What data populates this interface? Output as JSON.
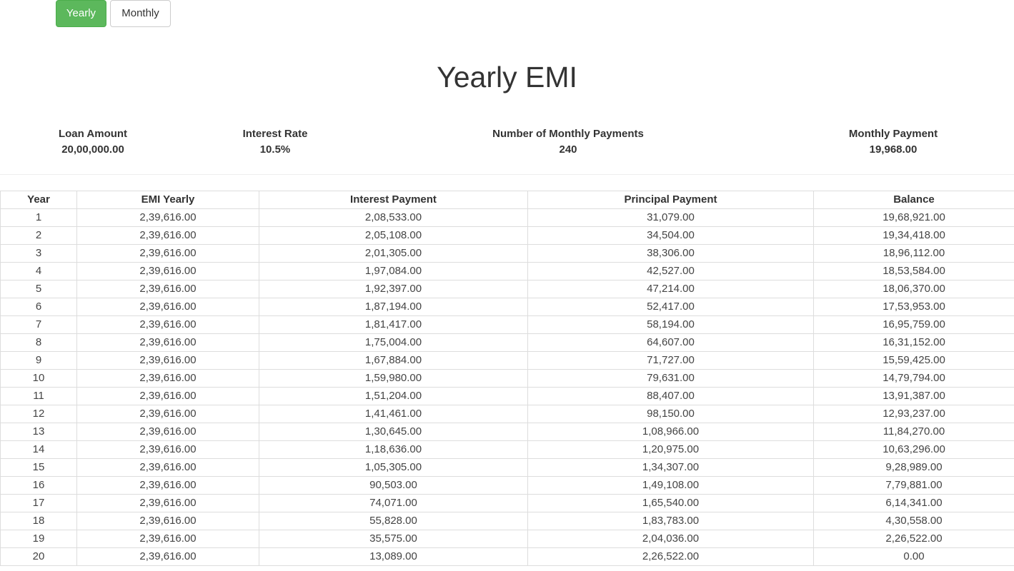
{
  "toggle": {
    "yearly_label": "Yearly",
    "monthly_label": "Monthly",
    "active": "Yearly",
    "active_color": "#5cb85c"
  },
  "title": "Yearly EMI",
  "summary": {
    "loan_amount_label": "Loan Amount",
    "loan_amount_value": "20,00,000.00",
    "interest_rate_label": "Interest Rate",
    "interest_rate_value": "10.5%",
    "num_payments_label": "Number of Monthly Payments",
    "num_payments_value": "240",
    "monthly_payment_label": "Monthly Payment",
    "monthly_payment_value": "19,968.00"
  },
  "table": {
    "headers": [
      "Year",
      "EMI Yearly",
      "Interest Payment",
      "Principal Payment",
      "Balance"
    ],
    "rows": [
      [
        "1",
        "2,39,616.00",
        "2,08,533.00",
        "31,079.00",
        "19,68,921.00"
      ],
      [
        "2",
        "2,39,616.00",
        "2,05,108.00",
        "34,504.00",
        "19,34,418.00"
      ],
      [
        "3",
        "2,39,616.00",
        "2,01,305.00",
        "38,306.00",
        "18,96,112.00"
      ],
      [
        "4",
        "2,39,616.00",
        "1,97,084.00",
        "42,527.00",
        "18,53,584.00"
      ],
      [
        "5",
        "2,39,616.00",
        "1,92,397.00",
        "47,214.00",
        "18,06,370.00"
      ],
      [
        "6",
        "2,39,616.00",
        "1,87,194.00",
        "52,417.00",
        "17,53,953.00"
      ],
      [
        "7",
        "2,39,616.00",
        "1,81,417.00",
        "58,194.00",
        "16,95,759.00"
      ],
      [
        "8",
        "2,39,616.00",
        "1,75,004.00",
        "64,607.00",
        "16,31,152.00"
      ],
      [
        "9",
        "2,39,616.00",
        "1,67,884.00",
        "71,727.00",
        "15,59,425.00"
      ],
      [
        "10",
        "2,39,616.00",
        "1,59,980.00",
        "79,631.00",
        "14,79,794.00"
      ],
      [
        "11",
        "2,39,616.00",
        "1,51,204.00",
        "88,407.00",
        "13,91,387.00"
      ],
      [
        "12",
        "2,39,616.00",
        "1,41,461.00",
        "98,150.00",
        "12,93,237.00"
      ],
      [
        "13",
        "2,39,616.00",
        "1,30,645.00",
        "1,08,966.00",
        "11,84,270.00"
      ],
      [
        "14",
        "2,39,616.00",
        "1,18,636.00",
        "1,20,975.00",
        "10,63,296.00"
      ],
      [
        "15",
        "2,39,616.00",
        "1,05,305.00",
        "1,34,307.00",
        "9,28,989.00"
      ],
      [
        "16",
        "2,39,616.00",
        "90,503.00",
        "1,49,108.00",
        "7,79,881.00"
      ],
      [
        "17",
        "2,39,616.00",
        "74,071.00",
        "1,65,540.00",
        "6,14,341.00"
      ],
      [
        "18",
        "2,39,616.00",
        "55,828.00",
        "1,83,783.00",
        "4,30,558.00"
      ],
      [
        "19",
        "2,39,616.00",
        "35,575.00",
        "2,04,036.00",
        "2,26,522.00"
      ],
      [
        "20",
        "2,39,616.00",
        "13,089.00",
        "2,26,522.00",
        "0.00"
      ]
    ]
  }
}
